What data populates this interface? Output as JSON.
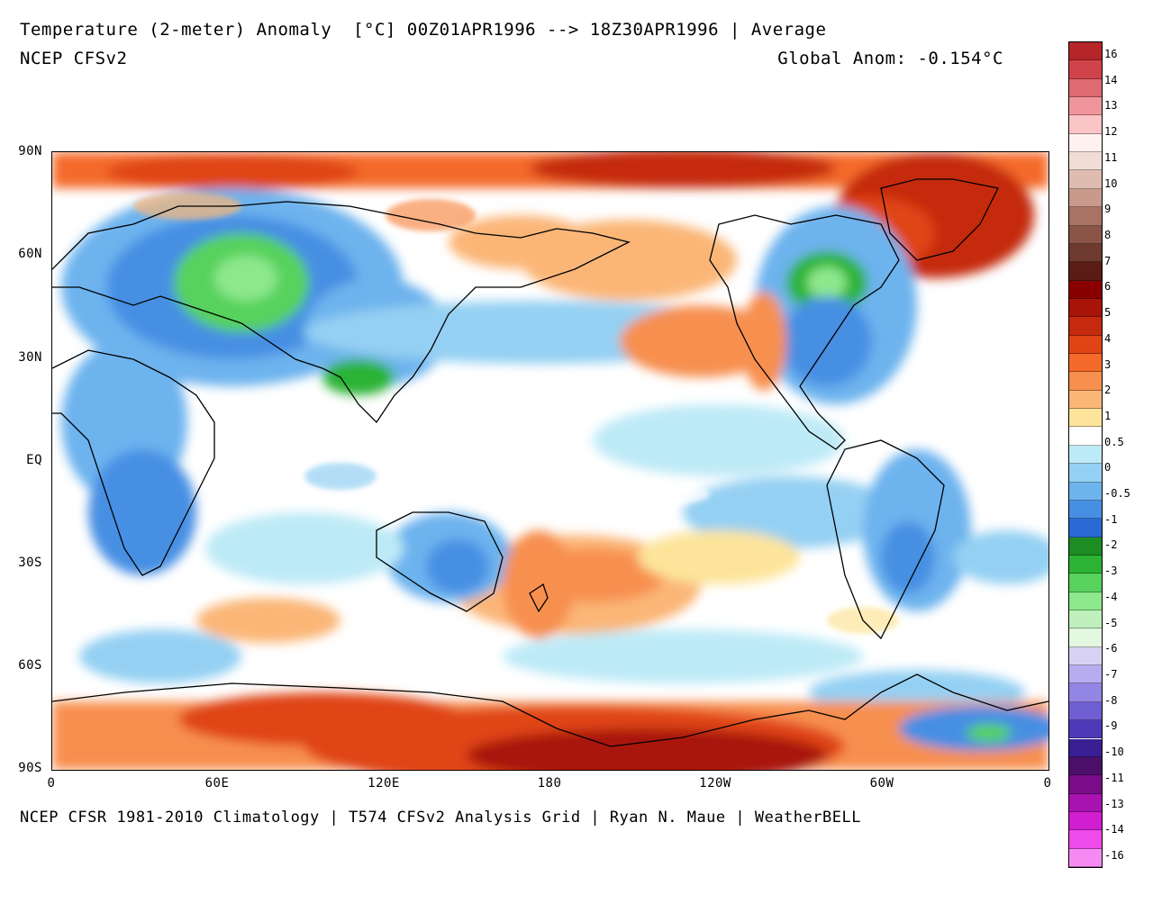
{
  "header": {
    "title_line1": "Temperature (2-meter) Anomaly  [°C] 00Z01APR1996 --> 18Z30APR1996 | Average",
    "title_line2": "NCEP CFSv2",
    "global_anomaly": "Global Anom: -0.154°C"
  },
  "footer": {
    "credit": "NCEP CFSR 1981-2010 Climatology | T574 CFSv2 Analysis Grid | Ryan N. Maue | WeatherBELL"
  },
  "map": {
    "projection": "cylindrical equidistant, centered on 180",
    "lat_labels": [
      "90N",
      "60N",
      "30N",
      "EQ",
      "30S",
      "60S",
      "90S"
    ],
    "lon_labels": [
      "0",
      "60E",
      "120E",
      "180",
      "120W",
      "60W",
      "0"
    ],
    "field": "2-meter temperature anomaly",
    "units": "°C"
  },
  "colorbar": {
    "levels": [
      "16",
      "14",
      "13",
      "12",
      "11",
      "10",
      "9",
      "8",
      "7",
      "6",
      "5",
      "4",
      "3",
      "2",
      "1",
      "0.5",
      "0",
      "-0.5",
      "-1",
      "-2",
      "-3",
      "-4",
      "-5",
      "-6",
      "-7",
      "-8",
      "-9",
      "-10",
      "-11",
      "-13",
      "-14",
      "-16"
    ],
    "colors": [
      "#b5262b",
      "#d0434a",
      "#e06a72",
      "#f0969b",
      "#fbc5c8",
      "#fff1ee",
      "#f0ddd6",
      "#dfbcb0",
      "#c99a8b",
      "#a87364",
      "#8a5447",
      "#6e3a2f",
      "#5a1c14",
      "#8a0000",
      "#a81508",
      "#c52a0e",
      "#e04415",
      "#f46a2a",
      "#f78f4f",
      "#fbb677",
      "#fde49a",
      "#ffffff",
      "#bdeaf7",
      "#94d0f3",
      "#6db3ee",
      "#468fe3",
      "#2a6ad4",
      "#1d8c23",
      "#2cb334",
      "#56d25d",
      "#8de88c",
      "#bff0bb",
      "#e3f6e0",
      "#d7d2f4",
      "#b7acf0",
      "#9385e3",
      "#705ed3",
      "#4e3ab8",
      "#3a1e94",
      "#4b0f6a",
      "#7a0c8a",
      "#a812b0",
      "#d01ed0",
      "#ee4bea",
      "#f58bf2"
    ]
  }
}
